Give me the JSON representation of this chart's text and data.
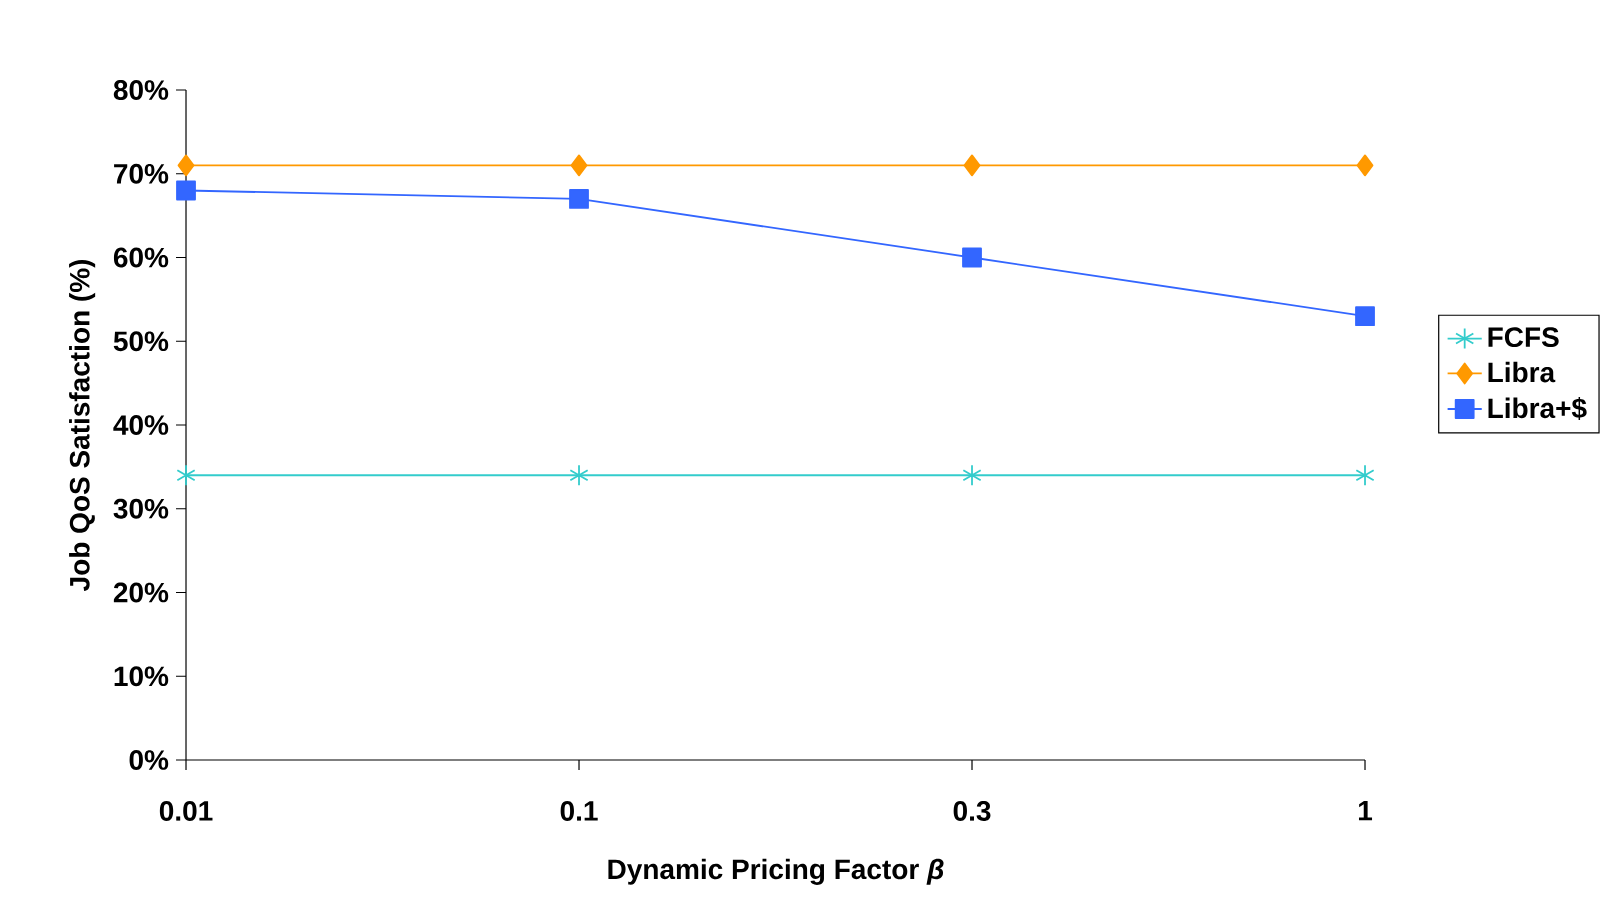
{
  "chart_data": {
    "type": "line",
    "xlabel": "Dynamic Pricing Factor *β*",
    "ylabel": "Job QoS Satisfaction (%)",
    "categories": [
      "0.01",
      "0.1",
      "0.3",
      "1"
    ],
    "series": [
      {
        "name": "FCFS",
        "color": "#33cccc",
        "marker": "cross",
        "values": [
          34,
          34,
          34,
          34
        ]
      },
      {
        "name": "Libra",
        "color": "#ff9900",
        "marker": "diamond",
        "values": [
          71,
          71,
          71,
          71
        ]
      },
      {
        "name": "Libra+$",
        "color": "#3366ff",
        "marker": "square",
        "values": [
          68,
          67,
          60,
          53
        ]
      }
    ],
    "ylim": [
      0,
      80
    ],
    "yticks": [
      {
        "value": 0,
        "label": "0%"
      },
      {
        "value": 10,
        "label": "10%"
      },
      {
        "value": 20,
        "label": "20%"
      },
      {
        "value": 30,
        "label": "30%"
      },
      {
        "value": 40,
        "label": "40%"
      },
      {
        "value": 50,
        "label": "50%"
      },
      {
        "value": 60,
        "label": "60%"
      },
      {
        "value": 70,
        "label": "70%"
      },
      {
        "value": 80,
        "label": "80%"
      }
    ],
    "grid": false,
    "legend": "right",
    "line_style": "solid"
  }
}
